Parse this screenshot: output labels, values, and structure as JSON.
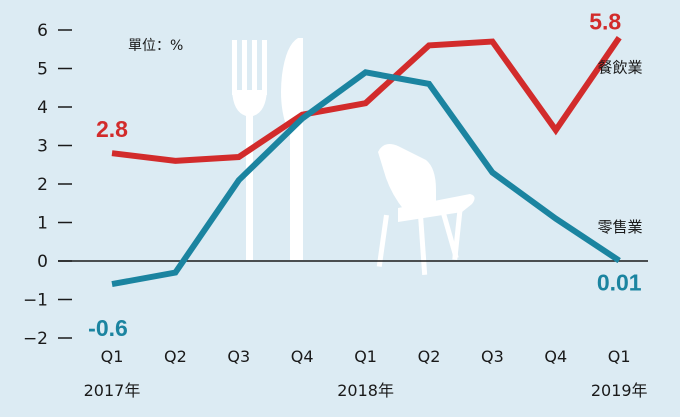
{
  "chart_data": {
    "type": "line",
    "unit_label": "單位：%",
    "categories": [
      "Q1",
      "Q2",
      "Q3",
      "Q4",
      "Q1",
      "Q2",
      "Q3",
      "Q4",
      "Q1"
    ],
    "year_labels": [
      {
        "index": 0,
        "label": "2017年"
      },
      {
        "index": 4,
        "label": "2018年"
      },
      {
        "index": 8,
        "label": "2019年"
      }
    ],
    "ylim": [
      -2,
      6
    ],
    "yticks": [
      "6",
      "5",
      "4",
      "3",
      "2",
      "1",
      "0",
      "−1",
      "−2"
    ],
    "series": [
      {
        "name": "餐飲業",
        "color": "#d22b2b",
        "values": [
          2.8,
          2.6,
          2.7,
          3.8,
          4.1,
          5.6,
          5.7,
          3.4,
          5.8
        ],
        "labels": [
          {
            "index": 0,
            "text": "2.8"
          },
          {
            "index": 8,
            "text": "5.8"
          }
        ]
      },
      {
        "name": "零售業",
        "color": "#1b84a0",
        "values": [
          -0.6,
          -0.3,
          2.1,
          3.7,
          4.9,
          4.6,
          2.3,
          1.1,
          0.01
        ],
        "labels": [
          {
            "index": 0,
            "text": "-0.6"
          },
          {
            "index": 8,
            "text": "0.01"
          }
        ]
      }
    ]
  }
}
